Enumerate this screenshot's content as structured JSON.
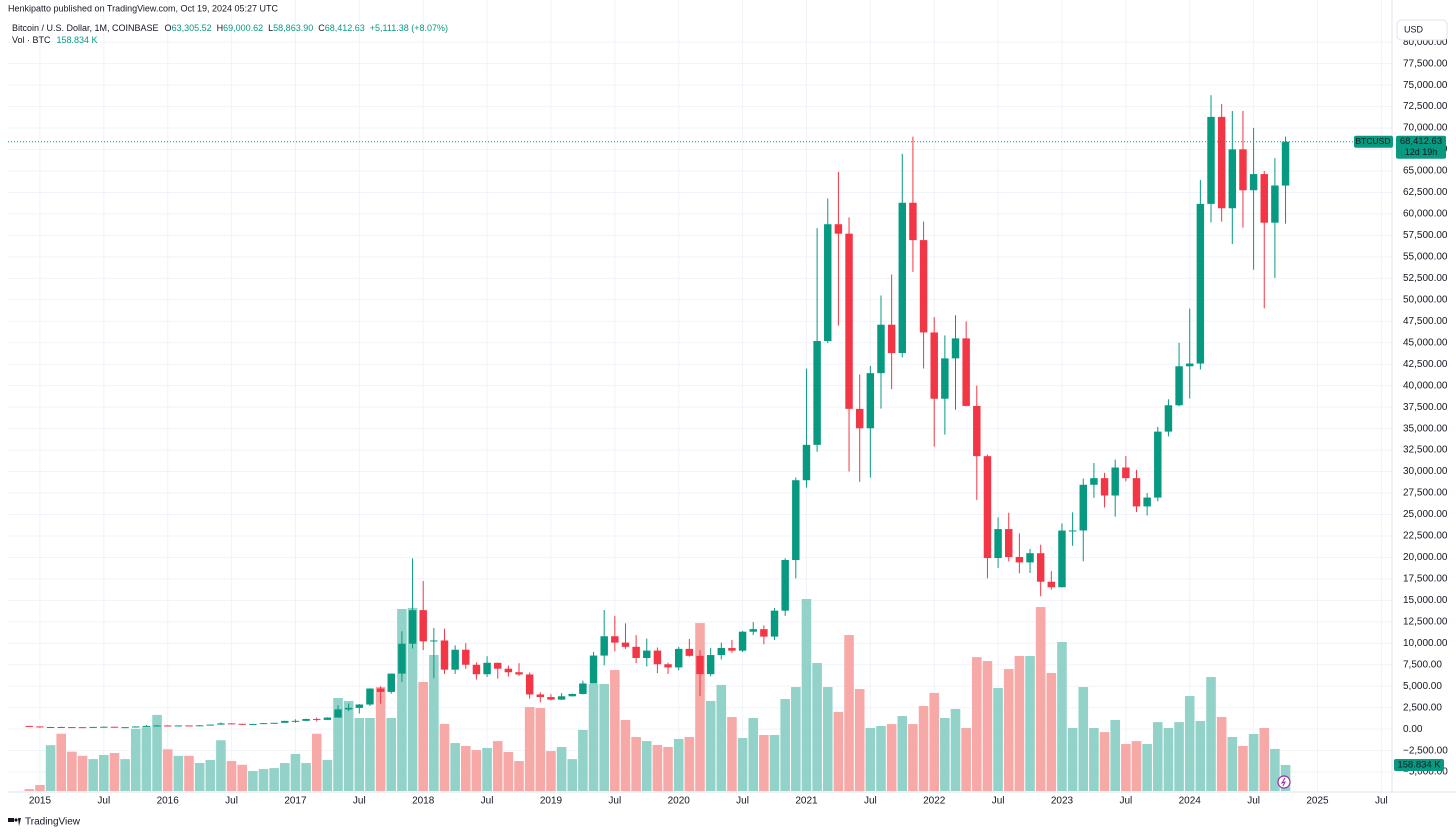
{
  "header": {
    "publisher": "Henkipatto published on TradingView.com, Oct 19, 2024 05:27 UTC",
    "symbol": "Bitcoin / U.S. Dollar, 1M, COINBASE",
    "ohlc": [
      {
        "label": "O",
        "value": "63,305.52"
      },
      {
        "label": "H",
        "value": "69,000.62"
      },
      {
        "label": "L",
        "value": "58,863.90"
      },
      {
        "label": "C",
        "value": "68,412.63"
      }
    ],
    "change": "+5,111.38 (+8.07%)",
    "volume_title": "Vol · BTC",
    "volume_value": "158.834 K"
  },
  "currency": "USD",
  "brand": "TradingView",
  "chart_data": {
    "type": "candlestick",
    "up_color": "#089981",
    "down_color": "#f23645",
    "up_volume_color": "#92d2c8",
    "down_volume_color": "#f7a9a7",
    "grid": true,
    "last_price_label": {
      "symbol": "BTCUSD",
      "price": "68,412.63",
      "countdown": "12d 19h"
    },
    "volume_label": "158.834 K",
    "xlim": [
      "2014-10",
      "2025-08"
    ],
    "xticks": [
      {
        "value": "2015-01",
        "label": "2015"
      },
      {
        "value": "2015-07",
        "label": "Jul"
      },
      {
        "value": "2016-01",
        "label": "2016"
      },
      {
        "value": "2016-07",
        "label": "Jul"
      },
      {
        "value": "2017-01",
        "label": "2017"
      },
      {
        "value": "2017-07",
        "label": "Jul"
      },
      {
        "value": "2018-01",
        "label": "2018"
      },
      {
        "value": "2018-07",
        "label": "Jul"
      },
      {
        "value": "2019-01",
        "label": "2019"
      },
      {
        "value": "2019-07",
        "label": "Jul"
      },
      {
        "value": "2020-01",
        "label": "2020"
      },
      {
        "value": "2020-07",
        "label": "Jul"
      },
      {
        "value": "2021-01",
        "label": "2021"
      },
      {
        "value": "2021-07",
        "label": "Jul"
      },
      {
        "value": "2022-01",
        "label": "2022"
      },
      {
        "value": "2022-07",
        "label": "Jul"
      },
      {
        "value": "2023-01",
        "label": "2023"
      },
      {
        "value": "2023-07",
        "label": "Jul"
      },
      {
        "value": "2024-01",
        "label": "2024"
      },
      {
        "value": "2024-07",
        "label": "Jul"
      },
      {
        "value": "2025-01",
        "label": "2025"
      },
      {
        "value": "2025-07",
        "label": "Jul"
      }
    ],
    "ylim": [
      -7200,
      82700
    ],
    "yticks": [
      {
        "value": -5000,
        "label": "−5,000.00"
      },
      {
        "value": -2500,
        "label": "−2,500.00"
      },
      {
        "value": 0,
        "label": "0.00"
      },
      {
        "value": 2500,
        "label": "2,500.00"
      },
      {
        "value": 5000,
        "label": "5,000.00"
      },
      {
        "value": 7500,
        "label": "7,500.00"
      },
      {
        "value": 10000,
        "label": "10,000.00"
      },
      {
        "value": 12500,
        "label": "12,500.00"
      },
      {
        "value": 15000,
        "label": "15,000.00"
      },
      {
        "value": 17500,
        "label": "17,500.00"
      },
      {
        "value": 20000,
        "label": "20,000.00"
      },
      {
        "value": 22500,
        "label": "22,500.00"
      },
      {
        "value": 25000,
        "label": "25,000.00"
      },
      {
        "value": 27500,
        "label": "27,500.00"
      },
      {
        "value": 30000,
        "label": "30,000.00"
      },
      {
        "value": 32500,
        "label": "32,500.00"
      },
      {
        "value": 35000,
        "label": "35,000.00"
      },
      {
        "value": 37500,
        "label": "37,500.00"
      },
      {
        "value": 40000,
        "label": "40,000.00"
      },
      {
        "value": 42500,
        "label": "42,500.00"
      },
      {
        "value": 45000,
        "label": "45,000.00"
      },
      {
        "value": 47500,
        "label": "47,500.00"
      },
      {
        "value": 50000,
        "label": "50,000.00"
      },
      {
        "value": 52500,
        "label": "52,500.00"
      },
      {
        "value": 55000,
        "label": "55,000.00"
      },
      {
        "value": 57500,
        "label": "57,500.00"
      },
      {
        "value": 60000,
        "label": "60,000.00"
      },
      {
        "value": 62500,
        "label": "62,500.00"
      },
      {
        "value": 65000,
        "label": "65,000.00"
      },
      {
        "value": 67500,
        "label": "67,500.00"
      },
      {
        "value": 70000,
        "label": "70,000.00"
      },
      {
        "value": 72500,
        "label": "72,500.00"
      },
      {
        "value": 75000,
        "label": "75,000.00"
      },
      {
        "value": 77500,
        "label": "77,500.00"
      },
      {
        "value": 80000,
        "label": "80,000.00"
      }
    ],
    "x": [
      "2014-12",
      "2015-01",
      "2015-02",
      "2015-03",
      "2015-04",
      "2015-05",
      "2015-06",
      "2015-07",
      "2015-08",
      "2015-09",
      "2015-10",
      "2015-11",
      "2015-12",
      "2016-01",
      "2016-02",
      "2016-03",
      "2016-04",
      "2016-05",
      "2016-06",
      "2016-07",
      "2016-08",
      "2016-09",
      "2016-10",
      "2016-11",
      "2016-12",
      "2017-01",
      "2017-02",
      "2017-03",
      "2017-04",
      "2017-05",
      "2017-06",
      "2017-07",
      "2017-08",
      "2017-09",
      "2017-10",
      "2017-11",
      "2017-12",
      "2018-01",
      "2018-02",
      "2018-03",
      "2018-04",
      "2018-05",
      "2018-06",
      "2018-07",
      "2018-08",
      "2018-09",
      "2018-10",
      "2018-11",
      "2018-12",
      "2019-01",
      "2019-02",
      "2019-03",
      "2019-04",
      "2019-05",
      "2019-06",
      "2019-07",
      "2019-08",
      "2019-09",
      "2019-10",
      "2019-11",
      "2019-12",
      "2020-01",
      "2020-02",
      "2020-03",
      "2020-04",
      "2020-05",
      "2020-06",
      "2020-07",
      "2020-08",
      "2020-09",
      "2020-10",
      "2020-11",
      "2020-12",
      "2021-01",
      "2021-02",
      "2021-03",
      "2021-04",
      "2021-05",
      "2021-06",
      "2021-07",
      "2021-08",
      "2021-09",
      "2021-10",
      "2021-11",
      "2021-12",
      "2022-01",
      "2022-02",
      "2022-03",
      "2022-04",
      "2022-05",
      "2022-06",
      "2022-07",
      "2022-08",
      "2022-09",
      "2022-10",
      "2022-11",
      "2022-12",
      "2023-01",
      "2023-02",
      "2023-03",
      "2023-04",
      "2023-05",
      "2023-06",
      "2023-07",
      "2023-08",
      "2023-09",
      "2023-10",
      "2023-11",
      "2023-12",
      "2024-01",
      "2024-02",
      "2024-03",
      "2024-04",
      "2024-05",
      "2024-06",
      "2024-07",
      "2024-08",
      "2024-09",
      "2024-10"
    ],
    "open": [
      380,
      320,
      218,
      254,
      244,
      236,
      230,
      263,
      284,
      230,
      236,
      314,
      378,
      430,
      368,
      436,
      416,
      448,
      531,
      673,
      624,
      575,
      609,
      701,
      742,
      966,
      970,
      1190,
      1080,
      1350,
      2300,
      2480,
      2870,
      4730,
      4340,
      6470,
      9950,
      13860,
      10230,
      10330,
      6930,
      9250,
      7500,
      6400,
      7730,
      7040,
      6630,
      6370,
      4040,
      3740,
      3440,
      3830,
      4100,
      5320,
      8570,
      10820,
      10080,
      9590,
      8290,
      9150,
      7560,
      7190,
      9350,
      8540,
      6410,
      8630,
      9450,
      9140,
      11350,
      11650,
      10780,
      13800,
      19700,
      28990,
      33110,
      45200,
      58800,
      57700,
      37300,
      35040,
      41460,
      47100,
      43800,
      61300,
      56950,
      46200,
      38480,
      43180,
      45510,
      37640,
      31790,
      19930,
      23300,
      20050,
      19420,
      20490,
      17170,
      16530,
      23130,
      23140,
      28460,
      29230,
      27210,
      30470,
      29230,
      25940,
      26970,
      34650,
      37720,
      42260,
      42580,
      61170,
      71300,
      60660,
      67520,
      62760,
      64640,
      58980,
      63305.52
    ],
    "high": [
      380,
      330,
      265,
      300,
      260,
      248,
      268,
      318,
      285,
      250,
      335,
      500,
      470,
      465,
      448,
      440,
      468,
      550,
      780,
      705,
      630,
      620,
      720,
      755,
      980,
      1150,
      1210,
      1350,
      1390,
      2790,
      3000,
      2930,
      4760,
      5000,
      6470,
      11400,
      19891,
      17250,
      11790,
      11700,
      9760,
      10020,
      7780,
      8500,
      7750,
      7410,
      7680,
      6600,
      4300,
      4070,
      4200,
      4140,
      5650,
      9000,
      13880,
      13200,
      12330,
      10950,
      10540,
      9510,
      7750,
      9580,
      10500,
      9190,
      9460,
      10080,
      10390,
      11440,
      12470,
      12080,
      14100,
      19900,
      29300,
      41990,
      58350,
      61800,
      64900,
      59600,
      41300,
      42300,
      50500,
      52950,
      67000,
      69000,
      59100,
      47990,
      45850,
      48200,
      47470,
      40000,
      31980,
      24670,
      25200,
      22800,
      20990,
      21480,
      18400,
      23960,
      25250,
      29190,
      31000,
      29850,
      31390,
      31800,
      30190,
      27490,
      35200,
      38420,
      45000,
      48970,
      63970,
      73830,
      72800,
      71980,
      71990,
      70000,
      65000,
      66500,
      69000.62
    ],
    "low": [
      310,
      170,
      212,
      235,
      210,
      225,
      220,
      253,
      198,
      225,
      235,
      300,
      350,
      350,
      367,
      400,
      414,
      440,
      520,
      600,
      535,
      570,
      605,
      685,
      740,
      750,
      950,
      890,
      1080,
      1350,
      2100,
      1830,
      2700,
      2970,
      4130,
      5500,
      9400,
      9200,
      5920,
      6430,
      6430,
      7030,
      5770,
      6070,
      5880,
      6130,
      6200,
      3550,
      3130,
      3350,
      3400,
      3800,
      4050,
      5320,
      7440,
      9070,
      9360,
      7700,
      7300,
      6520,
      6430,
      6860,
      8450,
      3860,
      6150,
      8110,
      8900,
      8990,
      10960,
      9880,
      10380,
      13200,
      17570,
      28130,
      32300,
      44960,
      47000,
      30000,
      28800,
      29300,
      37330,
      39600,
      43300,
      53250,
      42000,
      32900,
      34300,
      37200,
      37600,
      26700,
      17570,
      18780,
      19540,
      18150,
      18190,
      15480,
      16250,
      16500,
      21350,
      19550,
      26940,
      25810,
      24750,
      28860,
      25300,
      24900,
      26530,
      34090,
      37600,
      38500,
      41880,
      59000,
      59100,
      56500,
      58400,
      53500,
      49000,
      52550,
      58863.9
    ],
    "close": [
      320,
      218,
      254,
      244,
      236,
      230,
      263,
      284,
      230,
      236,
      314,
      378,
      430,
      368,
      436,
      416,
      448,
      531,
      673,
      624,
      575,
      609,
      701,
      742,
      966,
      970,
      1190,
      1080,
      1350,
      2300,
      2480,
      2870,
      4730,
      4340,
      6470,
      9950,
      13860,
      10230,
      10330,
      6930,
      9250,
      7500,
      6400,
      7730,
      7040,
      6630,
      6370,
      4040,
      3740,
      3440,
      3830,
      4100,
      5320,
      8570,
      10820,
      10080,
      9590,
      8290,
      9150,
      7560,
      7190,
      9350,
      8540,
      6410,
      8630,
      9450,
      9140,
      11350,
      11650,
      10780,
      13800,
      19700,
      28990,
      33110,
      45200,
      58800,
      57700,
      37300,
      35040,
      41460,
      47100,
      43800,
      61300,
      56950,
      46200,
      38480,
      43180,
      45510,
      37640,
      31790,
      19930,
      23300,
      20050,
      19420,
      20490,
      17170,
      16530,
      23130,
      23140,
      28460,
      29230,
      27210,
      30470,
      29230,
      25940,
      26970,
      34650,
      37720,
      42260,
      42580,
      61170,
      71300,
      60660,
      67520,
      62760,
      64640,
      58980,
      63310,
      68412.63
    ],
    "volume": [
      12,
      37,
      280,
      350,
      240,
      215,
      195,
      220,
      232,
      195,
      380,
      390,
      465,
      255,
      215,
      215,
      171,
      190,
      310,
      183,
      160,
      122,
      134,
      140,
      171,
      226,
      171,
      350,
      190,
      568,
      550,
      446,
      446,
      635,
      446,
      1112,
      1118,
      666,
      831,
      410,
      293,
      275,
      250,
      263,
      305,
      238,
      183,
      513,
      507,
      244,
      269,
      195,
      373,
      654,
      654,
      739,
      434,
      330,
      305,
      281,
      269,
      318,
      330,
      1026,
      550,
      648,
      452,
      324,
      446,
      342,
      342,
      562,
      635,
      1173,
      782,
      635,
      483,
      953,
      623,
      385,
      397,
      409,
      458,
      409,
      519,
      599,
      446,
      501,
      385,
      818,
      794,
      629,
      745,
      825,
      825,
      1124,
      721,
      910,
      385,
      635,
      385,
      360,
      434,
      287,
      305,
      287,
      421,
      385,
      421,
      580,
      428,
      696,
      452,
      330,
      275,
      348,
      385,
      257,
      158.834
    ]
  }
}
